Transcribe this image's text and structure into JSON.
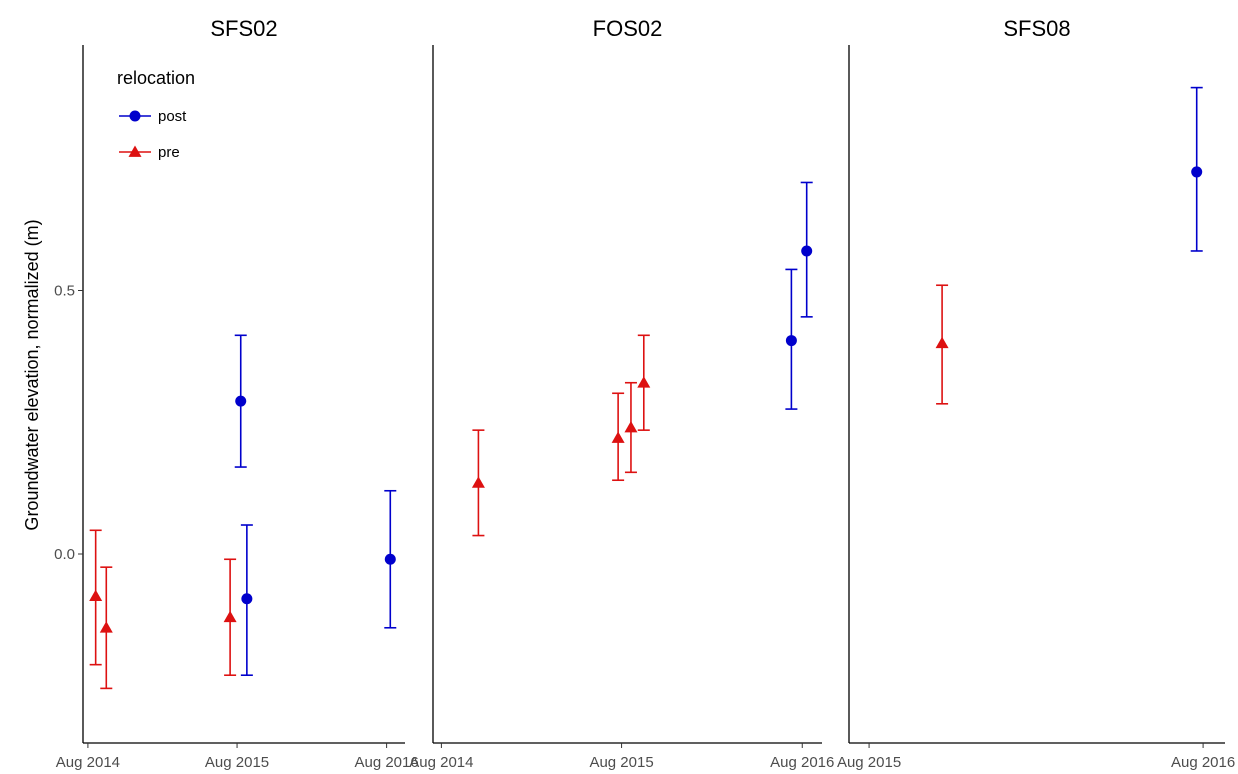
{
  "chart_data": {
    "type": "scatter",
    "ylabel": "Groundwater elevation, normalized (m)",
    "xlabel": "",
    "y_ticks": [
      "0.0",
      "0.5"
    ],
    "legend": {
      "title": "relocation",
      "position": "top-left",
      "entries": [
        {
          "label": "post",
          "color": "#0000cc",
          "shape": "circle"
        },
        {
          "label": "pre",
          "color": "#dd1111",
          "shape": "triangle"
        }
      ]
    },
    "grid": false,
    "panels": [
      {
        "title": "SFS02",
        "xlim": [
          "2014-07-20",
          "2016-09-15"
        ],
        "x_ticks": [
          {
            "label": "Aug 2014",
            "date": "2014-08-01"
          },
          {
            "label": "Aug 2015",
            "date": "2015-08-01"
          },
          {
            "label": "Aug 2016",
            "date": "2016-08-01"
          }
        ],
        "points": [
          {
            "date": "2014-08-20",
            "y": -0.08,
            "ymin": -0.21,
            "ymax": 0.045,
            "relocation": "pre"
          },
          {
            "date": "2014-09-15",
            "y": -0.14,
            "ymin": -0.255,
            "ymax": -0.025,
            "relocation": "pre"
          },
          {
            "date": "2015-07-15",
            "y": -0.12,
            "ymin": -0.23,
            "ymax": -0.01,
            "relocation": "pre"
          },
          {
            "date": "2015-08-10",
            "y": 0.29,
            "ymin": 0.165,
            "ymax": 0.415,
            "relocation": "post"
          },
          {
            "date": "2015-08-25",
            "y": -0.085,
            "ymin": -0.23,
            "ymax": 0.055,
            "relocation": "post"
          },
          {
            "date": "2016-08-10",
            "y": -0.01,
            "ymin": -0.14,
            "ymax": 0.12,
            "relocation": "post"
          }
        ]
      },
      {
        "title": "FOS02",
        "xlim": [
          "2014-07-15",
          "2016-09-10"
        ],
        "x_ticks": [
          {
            "label": "Aug 2014",
            "date": "2014-08-01"
          },
          {
            "label": "Aug 2015",
            "date": "2015-08-01"
          },
          {
            "label": "Aug 2016",
            "date": "2016-08-01"
          }
        ],
        "points": [
          {
            "date": "2014-10-15",
            "y": 0.135,
            "ymin": 0.035,
            "ymax": 0.235,
            "relocation": "pre"
          },
          {
            "date": "2015-07-25",
            "y": 0.22,
            "ymin": 0.14,
            "ymax": 0.305,
            "relocation": "pre"
          },
          {
            "date": "2015-08-20",
            "y": 0.24,
            "ymin": 0.155,
            "ymax": 0.325,
            "relocation": "pre"
          },
          {
            "date": "2015-09-15",
            "y": 0.325,
            "ymin": 0.235,
            "ymax": 0.415,
            "relocation": "pre"
          },
          {
            "date": "2016-07-10",
            "y": 0.405,
            "ymin": 0.275,
            "ymax": 0.54,
            "relocation": "post"
          },
          {
            "date": "2016-08-10",
            "y": 0.575,
            "ymin": 0.45,
            "ymax": 0.705,
            "relocation": "post"
          }
        ]
      },
      {
        "title": "SFS08",
        "xlim": [
          "2015-07-10",
          "2016-08-25"
        ],
        "x_ticks": [
          {
            "label": "Aug 2015",
            "date": "2015-08-01"
          },
          {
            "label": "Aug 2016",
            "date": "2016-08-01"
          }
        ],
        "points": [
          {
            "date": "2015-10-20",
            "y": 0.4,
            "ymin": 0.285,
            "ymax": 0.51,
            "relocation": "pre"
          },
          {
            "date": "2016-07-25",
            "y": 0.725,
            "ymin": 0.575,
            "ymax": 0.885,
            "relocation": "post"
          }
        ]
      }
    ]
  }
}
